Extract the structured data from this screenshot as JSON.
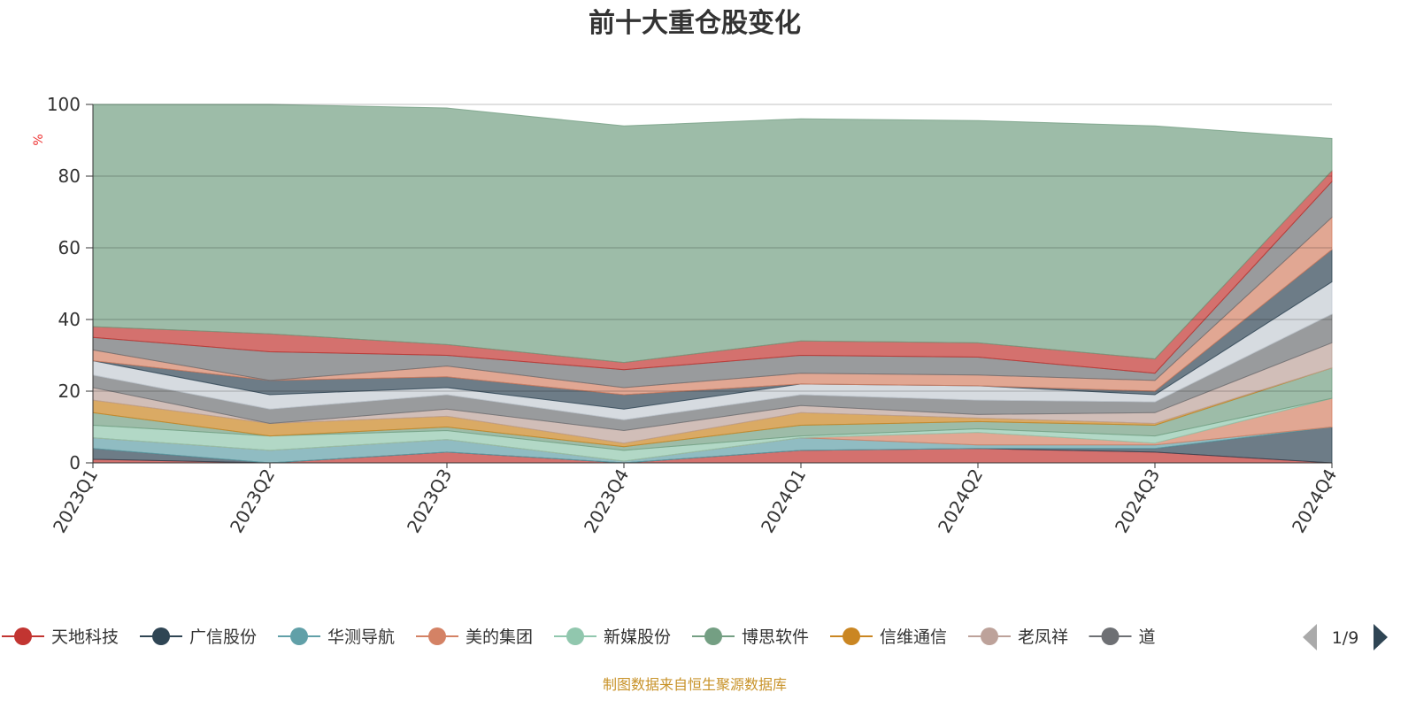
{
  "chart_data": {
    "type": "area",
    "stacked": true,
    "title": "前十大重仓股变化",
    "ylabel": "%",
    "ylim": [
      0,
      100
    ],
    "yticks": [
      "0",
      "20",
      "40",
      "60",
      "80",
      "100"
    ],
    "categories": [
      "2023Q1",
      "2023Q2",
      "2023Q3",
      "2023Q4",
      "2024Q1",
      "2024Q2",
      "2024Q3",
      "2024Q4"
    ],
    "grid": true,
    "legend_position": "bottom",
    "series": [
      {
        "name": "天地科技",
        "color": "#c23531",
        "values": [
          1,
          0,
          3,
          0,
          3.5,
          4,
          3,
          0
        ]
      },
      {
        "name": "广信股份",
        "color": "#2f4554",
        "values": [
          3,
          0,
          0,
          0,
          0,
          0,
          1,
          10
        ]
      },
      {
        "name": "华测导航",
        "color": "#61a0a8",
        "values": [
          3,
          3.5,
          3.5,
          0.5,
          3.5,
          1,
          1,
          0
        ]
      },
      {
        "name": "美的集团",
        "color": "#d48265",
        "values": [
          0,
          0,
          0,
          0,
          0,
          3.5,
          0.5,
          8
        ]
      },
      {
        "name": "新媒股份",
        "color": "#91c7ae",
        "values": [
          3.5,
          4,
          2.5,
          3,
          0.5,
          1,
          2,
          0
        ]
      },
      {
        "name": "博思软件",
        "color": "#749f83",
        "values": [
          3.5,
          0,
          1,
          1,
          3,
          2,
          3,
          8.5
        ]
      },
      {
        "name": "信维通信",
        "color": "#ca8622",
        "values": [
          3.5,
          3.5,
          3,
          1,
          3.5,
          1,
          0.5,
          0
        ]
      },
      {
        "name": "老凤祥",
        "color": "#bda29a",
        "values": [
          3.5,
          0,
          2,
          3.5,
          2,
          1,
          3,
          7
        ]
      },
      {
        "name": "道",
        "color": "#6e7074",
        "values": [
          3.5,
          4,
          4,
          3,
          3,
          4,
          3,
          8
        ]
      },
      {
        "name": "",
        "color": "#c4ccd3",
        "values": [
          4,
          4,
          2,
          3,
          3,
          4,
          2,
          9
        ]
      },
      {
        "name": "",
        "color": "#2f4554",
        "values": [
          0,
          4,
          3,
          4,
          0,
          0,
          1,
          9
        ]
      },
      {
        "name": "",
        "color": "#d48265",
        "values": [
          3,
          0,
          3,
          2,
          3,
          3,
          3,
          9
        ]
      },
      {
        "name": "",
        "color": "#6e7074",
        "values": [
          3.5,
          8,
          3,
          5,
          5,
          5,
          2,
          10
        ]
      },
      {
        "name": "",
        "color": "#c23531",
        "values": [
          3,
          5,
          3,
          2,
          4,
          4,
          4,
          3
        ]
      },
      {
        "name": "",
        "color": "#749f83",
        "values": [
          62,
          64,
          66,
          66,
          62,
          62,
          65,
          9
        ]
      }
    ]
  },
  "legend": {
    "page": "1/9"
  },
  "footer": "制图数据来自恒生聚源数据库"
}
